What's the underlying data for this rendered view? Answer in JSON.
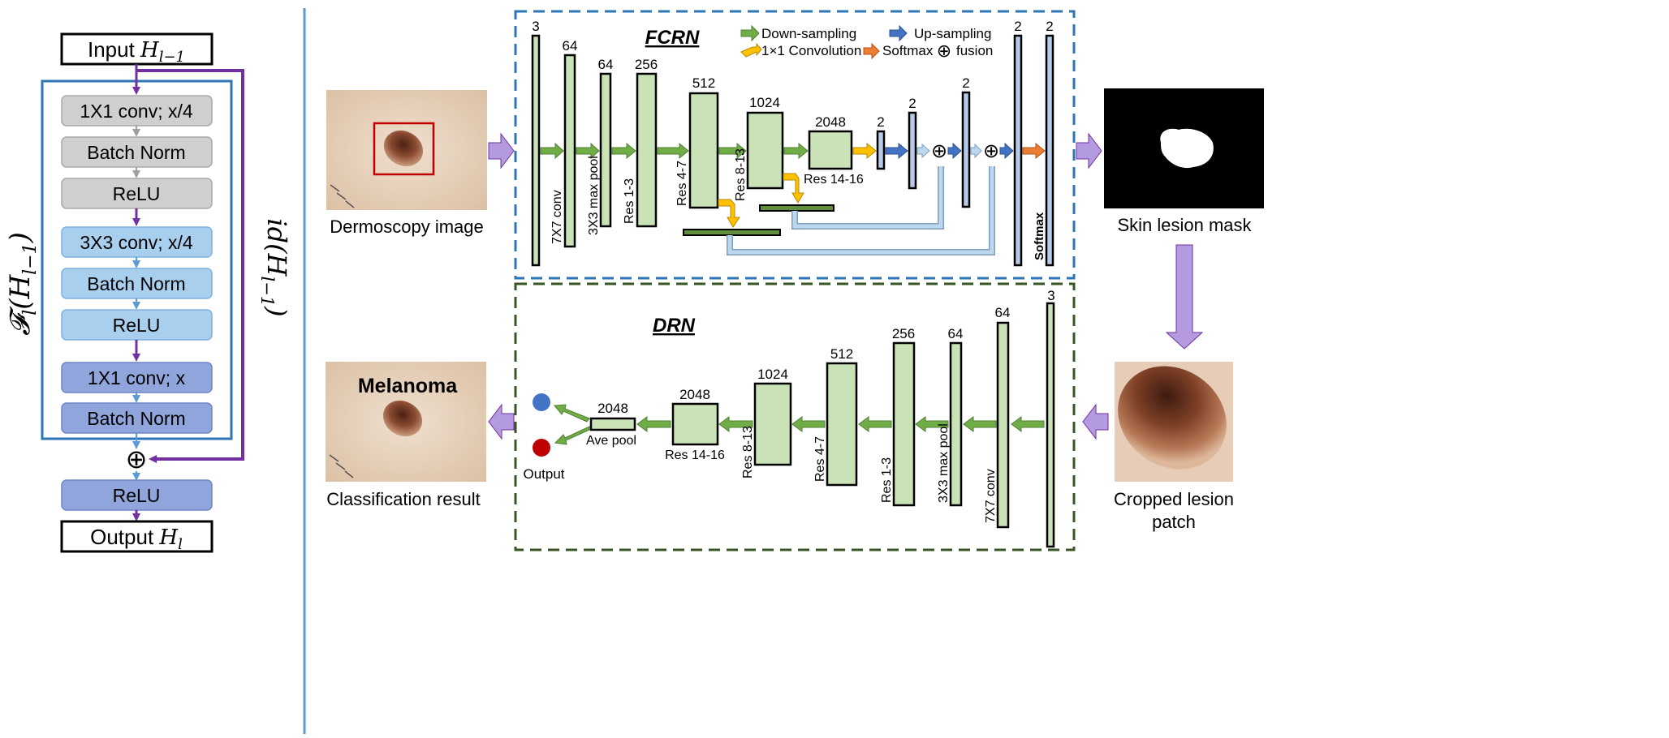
{
  "block": {
    "input_label": "Input ",
    "input_math": "H",
    "input_sub": "l−1",
    "output_label": "Output ",
    "output_math": "H",
    "output_sub": "l",
    "layers": [
      "1X1 conv; x/4",
      "Batch Norm",
      "ReLU",
      "3X3 conv; x/4",
      "Batch Norm",
      "ReLU",
      "1X1 conv; x",
      "Batch Norm"
    ],
    "final_relu": "ReLU",
    "fusion_symbol": "⊕",
    "residual_fn": "𝓕",
    "residual_fn_sub": "l",
    "residual_fn_arg": "(H",
    "residual_fn_arg_sub": "l−1",
    "residual_fn_close": ")",
    "identity_label": "id(H",
    "identity_sub": "l−1",
    "identity_close": ")"
  },
  "fcrn": {
    "title": "FCRN",
    "input_caption": "Dermoscopy image",
    "output_caption": "Skin lesion mask",
    "channels": [
      "3",
      "64",
      "64",
      "256",
      "512",
      "1024",
      "2048",
      "2",
      "2",
      "2",
      "2",
      "2"
    ],
    "layer_labels": [
      "7X7 conv",
      "3X3 max pool",
      "Res 1-3",
      "Res 4-7",
      "Res 8-13",
      "Res 14-16",
      "Softmax"
    ],
    "legend": {
      "down": "Down-sampling",
      "up": "Up-sampling",
      "conv": "1×1 Convolution",
      "softmax": "Softmax",
      "fusion_symbol": "⊕",
      "fusion": "fusion",
      "colors": {
        "down": "#70ad47",
        "up": "#4472c4",
        "conv": "#ffc000",
        "softmax": "#ed7d31",
        "flow": "#b49adf"
      }
    }
  },
  "drn": {
    "title": "DRN",
    "input_caption_line1": "Cropped lesion",
    "input_caption_line2": "patch",
    "output_caption": "Classification result",
    "result_label": "Melanoma",
    "channels": [
      "3",
      "64",
      "64",
      "256",
      "512",
      "1024",
      "2048",
      "2048"
    ],
    "layer_labels": [
      "7X7 conv",
      "3X3 max pool",
      "Res 1-3",
      "Res 4-7",
      "Res 8-13",
      "Res 14-16",
      "Ave pool"
    ],
    "output_label": "Output",
    "class_colors": [
      "#4472c4",
      "#c00000"
    ]
  }
}
